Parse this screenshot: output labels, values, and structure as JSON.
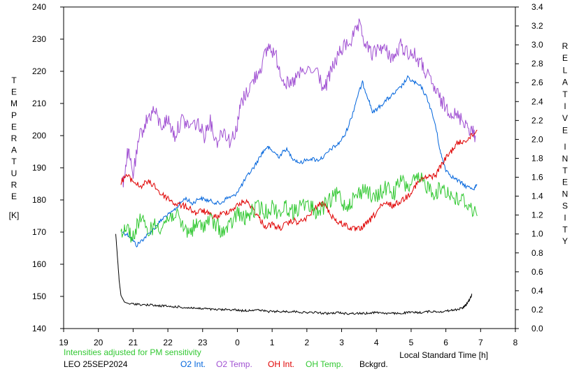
{
  "chart_data": {
    "type": "line",
    "left_axis_title_letters": [
      "T",
      "E",
      "M",
      "P",
      "E",
      "R",
      "A",
      "T",
      "U",
      "R",
      "E"
    ],
    "left_axis_unit": "[K]",
    "right_axis_title_word1": [
      "R",
      "E",
      "L",
      "A",
      "T",
      "I",
      "V",
      "E"
    ],
    "right_axis_title_word2": [
      "I",
      "N",
      "T",
      "E",
      "N",
      "S",
      "I",
      "T",
      "Y"
    ],
    "xlabel": "Local Standard Time [h]",
    "note": "Intensities adjusted for PM sensitivity",
    "station_date": "LEO 25SEP2024",
    "x_ticks": [
      "19",
      "20",
      "21",
      "22",
      "23",
      "0",
      "1",
      "2",
      "3",
      "4",
      "5",
      "6",
      "7",
      "8"
    ],
    "x_range": [
      19,
      32
    ],
    "y_left_ticks": [
      "140",
      "150",
      "160",
      "170",
      "180",
      "190",
      "200",
      "210",
      "220",
      "230",
      "240"
    ],
    "y_left_range": [
      140,
      240
    ],
    "y_right_ticks": [
      "0.0",
      "0.2",
      "0.4",
      "0.6",
      "0.8",
      "1.0",
      "1.2",
      "1.4",
      "1.6",
      "1.8",
      "2.0",
      "2.2",
      "2.4",
      "2.6",
      "2.8",
      "3.0",
      "3.2",
      "3.4"
    ],
    "y_right_range": [
      0.0,
      3.4
    ],
    "grid": false,
    "legend_position": "bottom",
    "series": [
      {
        "name": "O2 Int.",
        "axis": "right",
        "color": "#0064dc",
        "points": [
          [
            20.7,
            1.02
          ],
          [
            20.9,
            0.98
          ],
          [
            21.1,
            0.88
          ],
          [
            21.3,
            0.95
          ],
          [
            21.5,
            1.02
          ],
          [
            21.7,
            1.1
          ],
          [
            21.9,
            1.18
          ],
          [
            22.1,
            1.22
          ],
          [
            22.3,
            1.3
          ],
          [
            22.5,
            1.38
          ],
          [
            22.7,
            1.32
          ],
          [
            22.9,
            1.38
          ],
          [
            23.1,
            1.36
          ],
          [
            23.3,
            1.34
          ],
          [
            23.5,
            1.32
          ],
          [
            23.7,
            1.38
          ],
          [
            23.9,
            1.4
          ],
          [
            24.1,
            1.5
          ],
          [
            24.3,
            1.62
          ],
          [
            24.5,
            1.72
          ],
          [
            24.7,
            1.85
          ],
          [
            24.85,
            1.92
          ],
          [
            25.0,
            1.88
          ],
          [
            25.2,
            1.82
          ],
          [
            25.4,
            1.9
          ],
          [
            25.6,
            1.8
          ],
          [
            25.8,
            1.75
          ],
          [
            26.1,
            1.8
          ],
          [
            26.3,
            1.78
          ],
          [
            26.5,
            1.82
          ],
          [
            26.7,
            1.9
          ],
          [
            26.9,
            1.95
          ],
          [
            27.1,
            2.05
          ],
          [
            27.3,
            2.25
          ],
          [
            27.45,
            2.45
          ],
          [
            27.6,
            2.6
          ],
          [
            27.75,
            2.45
          ],
          [
            27.9,
            2.28
          ],
          [
            28.1,
            2.35
          ],
          [
            28.3,
            2.42
          ],
          [
            28.5,
            2.48
          ],
          [
            28.7,
            2.55
          ],
          [
            28.9,
            2.65
          ],
          [
            29.1,
            2.6
          ],
          [
            29.3,
            2.55
          ],
          [
            29.5,
            2.4
          ],
          [
            29.7,
            2.15
          ],
          [
            29.85,
            1.85
          ],
          [
            30.0,
            1.68
          ],
          [
            30.2,
            1.6
          ],
          [
            30.4,
            1.55
          ],
          [
            30.6,
            1.5
          ],
          [
            30.8,
            1.48
          ],
          [
            30.9,
            1.52
          ]
        ]
      },
      {
        "name": "O2 Temp.",
        "axis": "left",
        "color": "#a050d2",
        "points": [
          [
            20.7,
            185
          ],
          [
            20.85,
            195
          ],
          [
            21.0,
            188
          ],
          [
            21.2,
            200
          ],
          [
            21.4,
            205
          ],
          [
            21.6,
            208
          ],
          [
            21.8,
            203
          ],
          [
            22.0,
            205
          ],
          [
            22.2,
            200
          ],
          [
            22.4,
            205
          ],
          [
            22.6,
            203
          ],
          [
            22.85,
            204
          ],
          [
            23.05,
            200
          ],
          [
            23.2,
            205
          ],
          [
            23.4,
            198
          ],
          [
            23.6,
            202
          ],
          [
            23.8,
            198
          ],
          [
            24.0,
            203
          ],
          [
            24.1,
            210
          ],
          [
            24.3,
            214
          ],
          [
            24.5,
            218
          ],
          [
            24.7,
            222
          ],
          [
            24.9,
            228
          ],
          [
            25.1,
            225
          ],
          [
            25.3,
            218
          ],
          [
            25.5,
            215
          ],
          [
            25.7,
            218
          ],
          [
            25.9,
            220
          ],
          [
            26.3,
            220
          ],
          [
            26.5,
            214
          ],
          [
            26.7,
            220
          ],
          [
            26.9,
            225
          ],
          [
            27.1,
            228
          ],
          [
            27.3,
            230
          ],
          [
            27.5,
            234
          ],
          [
            27.7,
            228
          ],
          [
            27.9,
            225
          ],
          [
            28.1,
            228
          ],
          [
            28.3,
            226
          ],
          [
            28.5,
            224
          ],
          [
            28.7,
            228
          ],
          [
            28.9,
            226
          ],
          [
            29.1,
            225
          ],
          [
            29.3,
            222
          ],
          [
            29.5,
            218
          ],
          [
            29.7,
            214
          ],
          [
            29.9,
            210
          ],
          [
            30.1,
            208
          ],
          [
            30.3,
            206
          ],
          [
            30.5,
            205
          ],
          [
            30.7,
            202
          ],
          [
            30.85,
            200
          ]
        ]
      },
      {
        "name": "OH Int.",
        "axis": "right",
        "color": "#e00000",
        "points": [
          [
            20.65,
            1.55
          ],
          [
            20.8,
            1.62
          ],
          [
            21.0,
            1.56
          ],
          [
            21.2,
            1.5
          ],
          [
            21.4,
            1.55
          ],
          [
            21.6,
            1.52
          ],
          [
            21.8,
            1.42
          ],
          [
            22.0,
            1.38
          ],
          [
            22.2,
            1.32
          ],
          [
            22.4,
            1.3
          ],
          [
            22.6,
            1.28
          ],
          [
            22.8,
            1.22
          ],
          [
            23.0,
            1.25
          ],
          [
            23.2,
            1.2
          ],
          [
            23.4,
            1.18
          ],
          [
            23.6,
            1.22
          ],
          [
            23.8,
            1.25
          ],
          [
            24.0,
            1.3
          ],
          [
            24.2,
            1.35
          ],
          [
            24.4,
            1.3
          ],
          [
            24.6,
            1.18
          ],
          [
            24.8,
            1.08
          ],
          [
            25.0,
            1.1
          ],
          [
            25.2,
            1.06
          ],
          [
            25.4,
            1.1
          ],
          [
            25.6,
            1.14
          ],
          [
            25.8,
            1.12
          ],
          [
            26.1,
            1.2
          ],
          [
            26.3,
            1.3
          ],
          [
            26.5,
            1.32
          ],
          [
            26.7,
            1.2
          ],
          [
            26.9,
            1.12
          ],
          [
            27.1,
            1.1
          ],
          [
            27.3,
            1.05
          ],
          [
            27.5,
            1.05
          ],
          [
            27.7,
            1.1
          ],
          [
            27.9,
            1.18
          ],
          [
            28.1,
            1.28
          ],
          [
            28.3,
            1.32
          ],
          [
            28.5,
            1.3
          ],
          [
            28.7,
            1.35
          ],
          [
            28.9,
            1.4
          ],
          [
            29.1,
            1.5
          ],
          [
            29.3,
            1.58
          ],
          [
            29.5,
            1.6
          ],
          [
            29.7,
            1.62
          ],
          [
            29.9,
            1.75
          ],
          [
            30.1,
            1.85
          ],
          [
            30.3,
            1.95
          ],
          [
            30.5,
            1.98
          ],
          [
            30.7,
            2.02
          ],
          [
            30.9,
            2.1
          ]
        ]
      },
      {
        "name": "OH Temp.",
        "axis": "left",
        "color": "#32c832",
        "points": [
          [
            20.65,
            170
          ],
          [
            20.8,
            172
          ],
          [
            21.0,
            168
          ],
          [
            21.2,
            175
          ],
          [
            21.4,
            170
          ],
          [
            21.6,
            172
          ],
          [
            21.8,
            172
          ],
          [
            22.0,
            174
          ],
          [
            22.2,
            176
          ],
          [
            22.4,
            172
          ],
          [
            22.6,
            170
          ],
          [
            22.8,
            172
          ],
          [
            23.0,
            172
          ],
          [
            23.2,
            174
          ],
          [
            23.4,
            172
          ],
          [
            23.6,
            170
          ],
          [
            23.8,
            172
          ],
          [
            24.0,
            176
          ],
          [
            24.2,
            174
          ],
          [
            24.4,
            176
          ],
          [
            24.6,
            178
          ],
          [
            24.8,
            176
          ],
          [
            25.0,
            178
          ],
          [
            25.2,
            176
          ],
          [
            25.4,
            178
          ],
          [
            25.6,
            176
          ],
          [
            25.8,
            178
          ],
          [
            26.1,
            178
          ],
          [
            26.3,
            176
          ],
          [
            26.5,
            178
          ],
          [
            26.7,
            180
          ],
          [
            26.9,
            182
          ],
          [
            27.1,
            178
          ],
          [
            27.3,
            180
          ],
          [
            27.5,
            182
          ],
          [
            27.7,
            184
          ],
          [
            27.9,
            180
          ],
          [
            28.1,
            182
          ],
          [
            28.3,
            184
          ],
          [
            28.5,
            182
          ],
          [
            28.7,
            186
          ],
          [
            28.9,
            184
          ],
          [
            29.1,
            186
          ],
          [
            29.3,
            186
          ],
          [
            29.5,
            184
          ],
          [
            29.7,
            182
          ],
          [
            29.9,
            184
          ],
          [
            30.1,
            182
          ],
          [
            30.3,
            180
          ],
          [
            30.5,
            180
          ],
          [
            30.7,
            178
          ],
          [
            30.9,
            175
          ]
        ]
      },
      {
        "name": "Bckgrd.",
        "axis": "right",
        "color": "#000000",
        "points": [
          [
            20.5,
            1.0
          ],
          [
            20.55,
            0.75
          ],
          [
            20.6,
            0.5
          ],
          [
            20.65,
            0.35
          ],
          [
            20.75,
            0.28
          ],
          [
            20.9,
            0.26
          ],
          [
            21.1,
            0.26
          ],
          [
            21.3,
            0.25
          ],
          [
            21.5,
            0.25
          ],
          [
            21.7,
            0.24
          ],
          [
            21.9,
            0.24
          ],
          [
            22.1,
            0.23
          ],
          [
            22.3,
            0.23
          ],
          [
            22.5,
            0.22
          ],
          [
            22.7,
            0.22
          ],
          [
            22.9,
            0.21
          ],
          [
            23.1,
            0.21
          ],
          [
            23.3,
            0.2
          ],
          [
            23.5,
            0.2
          ],
          [
            23.7,
            0.2
          ],
          [
            23.9,
            0.2
          ],
          [
            24.1,
            0.19
          ],
          [
            24.3,
            0.19
          ],
          [
            24.5,
            0.2
          ],
          [
            24.7,
            0.19
          ],
          [
            24.9,
            0.18
          ],
          [
            25.1,
            0.18
          ],
          [
            25.3,
            0.18
          ],
          [
            25.5,
            0.18
          ],
          [
            25.7,
            0.18
          ],
          [
            25.9,
            0.17
          ],
          [
            26.1,
            0.17
          ],
          [
            26.3,
            0.17
          ],
          [
            26.5,
            0.16
          ],
          [
            26.7,
            0.16
          ],
          [
            26.9,
            0.17
          ],
          [
            27.1,
            0.16
          ],
          [
            27.3,
            0.16
          ],
          [
            27.5,
            0.16
          ],
          [
            27.7,
            0.16
          ],
          [
            27.9,
            0.17
          ],
          [
            28.1,
            0.17
          ],
          [
            28.3,
            0.16
          ],
          [
            28.5,
            0.16
          ],
          [
            28.7,
            0.16
          ],
          [
            28.9,
            0.17
          ],
          [
            29.1,
            0.17
          ],
          [
            29.3,
            0.17
          ],
          [
            29.5,
            0.18
          ],
          [
            29.7,
            0.18
          ],
          [
            29.9,
            0.18
          ],
          [
            30.1,
            0.19
          ],
          [
            30.3,
            0.2
          ],
          [
            30.5,
            0.22
          ],
          [
            30.6,
            0.26
          ],
          [
            30.7,
            0.32
          ],
          [
            30.75,
            0.36
          ]
        ]
      }
    ]
  }
}
